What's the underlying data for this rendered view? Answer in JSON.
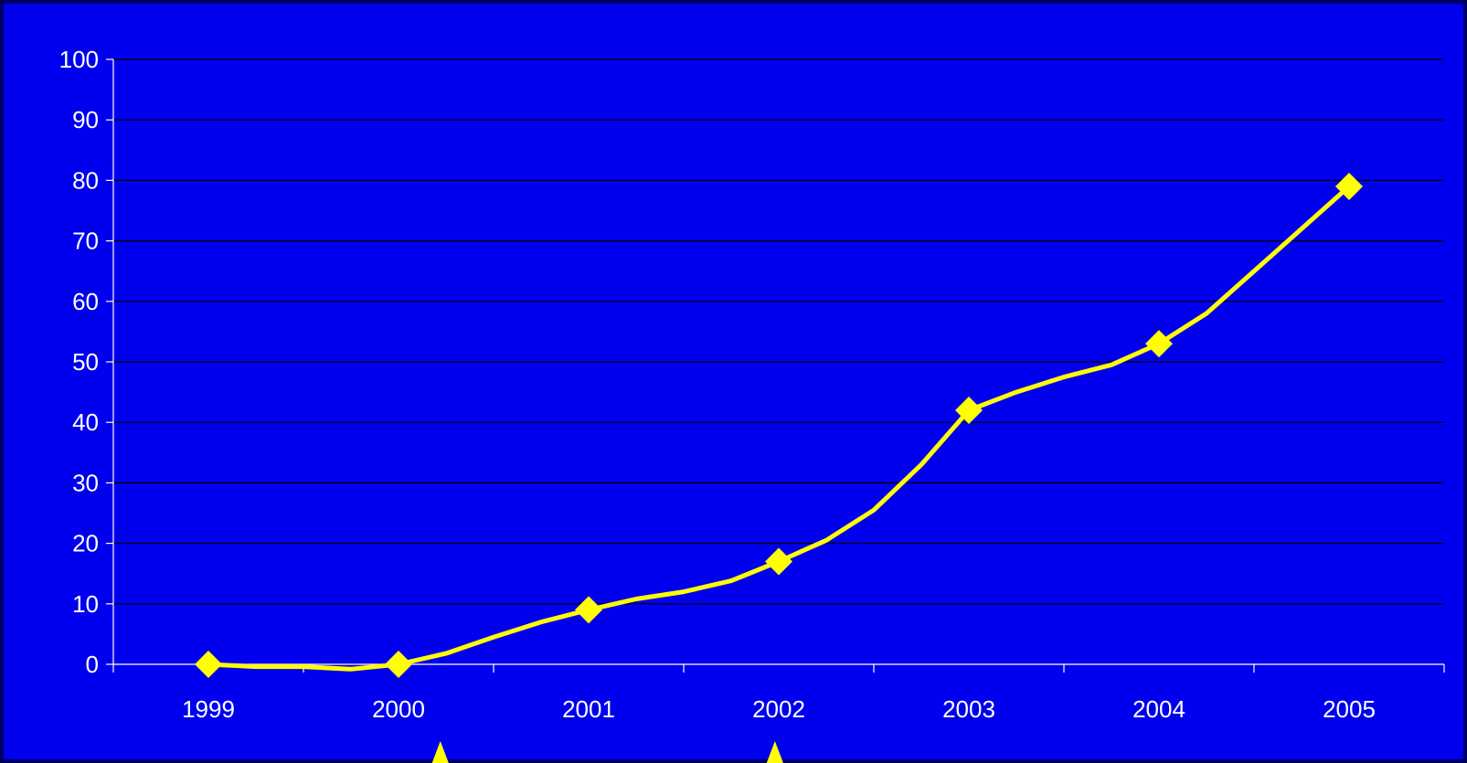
{
  "colors": {
    "background": "#0000ee",
    "border": "#000060",
    "grid": "#000000",
    "axis": "#ffffff",
    "text": "#ffffff",
    "series": "#ffff00"
  },
  "chart_data": {
    "type": "line",
    "title": "",
    "xlabel": "",
    "ylabel": "",
    "categories": [
      "1999",
      "2000",
      "2001",
      "2002",
      "2003",
      "2004",
      "2005"
    ],
    "yticks": [
      "0",
      "10",
      "20",
      "30",
      "40",
      "50",
      "60",
      "70",
      "80",
      "90",
      "100"
    ],
    "ylim": [
      0,
      100
    ],
    "grid": true,
    "legend": "none",
    "series": [
      {
        "values": [
          0,
          0,
          9,
          17,
          42,
          53,
          79
        ],
        "curve": [
          [
            0,
            0
          ],
          [
            0.25,
            -0.4
          ],
          [
            0.5,
            -0.4
          ],
          [
            0.75,
            -0.8
          ],
          [
            1,
            0
          ],
          [
            1.25,
            1.8
          ],
          [
            1.5,
            4.5
          ],
          [
            1.75,
            7
          ],
          [
            2,
            9
          ],
          [
            2.25,
            10.8
          ],
          [
            2.5,
            12
          ],
          [
            2.75,
            13.8
          ],
          [
            3,
            17
          ],
          [
            3.25,
            20.5
          ],
          [
            3.5,
            25.5
          ],
          [
            3.75,
            33
          ],
          [
            4,
            42
          ],
          [
            4.25,
            45
          ],
          [
            4.5,
            47.5
          ],
          [
            4.75,
            49.5
          ],
          [
            5,
            53
          ],
          [
            5.25,
            58
          ],
          [
            5.5,
            65
          ],
          [
            5.75,
            72
          ],
          [
            6,
            79
          ]
        ]
      }
    ],
    "annotations": [
      {
        "type": "marker-up-triangle",
        "x": 1.22
      },
      {
        "type": "marker-up-triangle",
        "x": 2.98
      }
    ]
  }
}
